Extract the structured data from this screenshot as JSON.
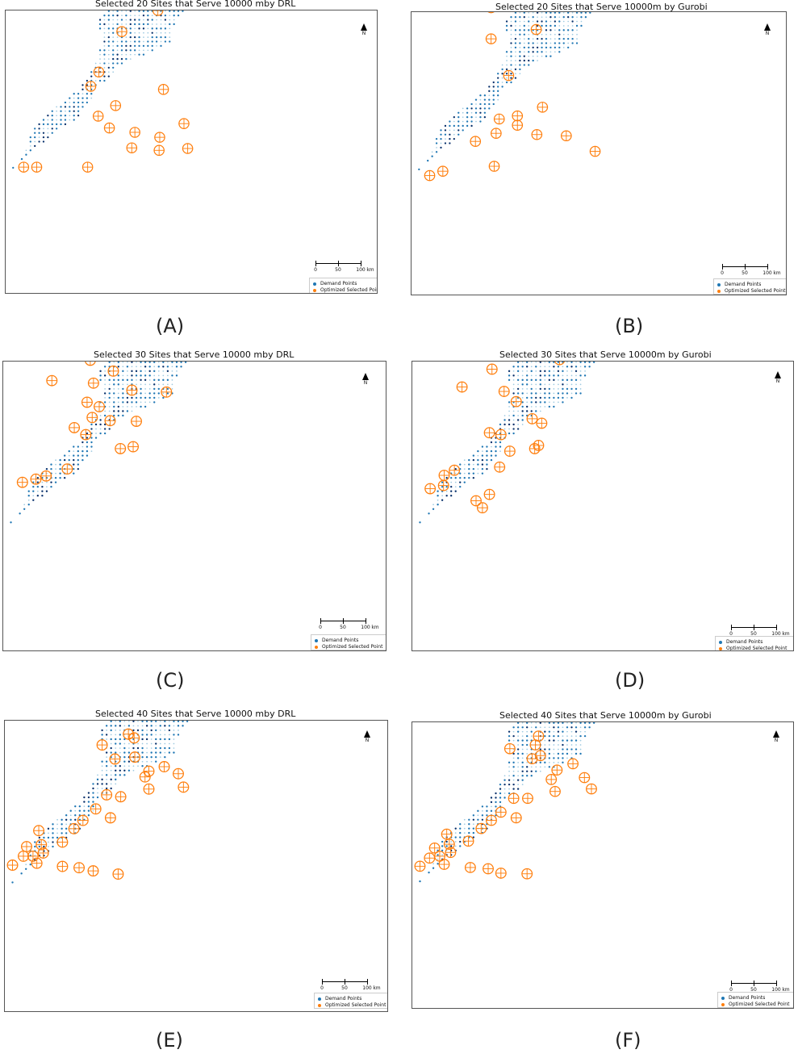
{
  "colors": {
    "demand": "#1f77b4",
    "demand_dark": "#08306b",
    "demand_light": "#9ecae1",
    "selected": "#ff7f0e"
  },
  "common": {
    "north_label": "N",
    "scale_labels": [
      "0",
      "50",
      "100"
    ],
    "scale_unit": "km",
    "legend_demand": "Demand Points",
    "legend_selected": "Optimized Selected Point"
  },
  "panels": [
    {
      "id": "A",
      "label": "(A)",
      "title": "Selected 20 Sites that Serve 10000 mby DRL",
      "sites": [
        [
          -168,
          264
        ],
        [
          -99,
          223
        ],
        [
          -32,
          220
        ],
        [
          -55,
          150
        ],
        [
          -113,
          116
        ],
        [
          -150,
          51
        ],
        [
          -163,
          28
        ],
        [
          -46,
          23
        ],
        [
          -123,
          -3
        ],
        [
          -151,
          -20
        ],
        [
          -133,
          -39
        ],
        [
          -92,
          -46
        ],
        [
          -52,
          -54
        ],
        [
          -13,
          -32
        ],
        [
          -97,
          -71
        ],
        [
          -53,
          -75
        ],
        [
          -7,
          -72
        ],
        [
          -168,
          -102
        ],
        [
          -250,
          -102
        ],
        [
          -271,
          -102
        ]
      ]
    },
    {
      "id": "B",
      "label": "(B)",
      "title": "Selected 20 Sites that Serve 10000m by Gurobi",
      "sites": [
        [
          -150,
          264
        ],
        [
          -42,
          215
        ],
        [
          -162,
          203
        ],
        [
          -20,
          194
        ],
        [
          -173,
          157
        ],
        [
          -101,
          122
        ],
        [
          -173,
          107
        ],
        [
          -145,
          48
        ],
        [
          -91,
          -3
        ],
        [
          -131,
          -17
        ],
        [
          -160,
          -22
        ],
        [
          -131,
          -32
        ],
        [
          -165,
          -45
        ],
        [
          -100,
          -47
        ],
        [
          -198,
          -58
        ],
        [
          -53,
          -49
        ],
        [
          -7,
          -74
        ],
        [
          -168,
          -98
        ],
        [
          -250,
          -106
        ],
        [
          -271,
          -113
        ]
      ]
    },
    {
      "id": "C",
      "label": "(C)",
      "title": "Selected 30 Sites that Serve 10000 mby DRL",
      "sites": [
        [
          -48,
          327
        ],
        [
          -74,
          320
        ],
        [
          -10,
          278
        ],
        [
          -127,
          262
        ],
        [
          -58,
          250
        ],
        [
          -104,
          230
        ],
        [
          -150,
          211
        ],
        [
          -128,
          211
        ],
        [
          -206,
          176
        ],
        [
          -150,
          176
        ],
        [
          -54,
          160
        ],
        [
          -164,
          152
        ],
        [
          -128,
          135
        ],
        [
          -224,
          120
        ],
        [
          -159,
          116
        ],
        [
          -99,
          105
        ],
        [
          -45,
          102
        ],
        [
          -169,
          86
        ],
        [
          -150,
          79
        ],
        [
          -161,
          62
        ],
        [
          -133,
          57
        ],
        [
          -92,
          56
        ],
        [
          -189,
          46
        ],
        [
          -171,
          35
        ],
        [
          -97,
          16
        ],
        [
          -117,
          13
        ],
        [
          -200,
          -19
        ],
        [
          -233,
          -30
        ],
        [
          -249,
          -35
        ],
        [
          -270,
          -40
        ]
      ]
    },
    {
      "id": "D",
      "label": "(D)",
      "title": "Selected 30 Sites that Serve 10000m by Gurobi",
      "sites": [
        [
          -24,
          307
        ],
        [
          -77,
          312
        ],
        [
          -115,
          272
        ],
        [
          -162,
          266
        ],
        [
          -142,
          253
        ],
        [
          -115,
          221
        ],
        [
          -188,
          215
        ],
        [
          -127,
          200
        ],
        [
          -78,
          187
        ],
        [
          -152,
          187
        ],
        [
          -69,
          153
        ],
        [
          -175,
          138
        ],
        [
          -222,
          110
        ],
        [
          -156,
          103
        ],
        [
          -137,
          87
        ],
        [
          -112,
          60
        ],
        [
          -97,
          53
        ],
        [
          -179,
          38
        ],
        [
          -161,
          35
        ],
        [
          -102,
          18
        ],
        [
          -108,
          13
        ],
        [
          -147,
          9
        ],
        [
          -163,
          -16
        ],
        [
          -234,
          -21
        ],
        [
          -250,
          -29
        ],
        [
          -251,
          -45
        ],
        [
          -272,
          -50
        ],
        [
          -190,
          -80
        ],
        [
          -200,
          -69
        ],
        [
          -179,
          -59
        ]
      ]
    },
    {
      "id": "E",
      "label": "(E)",
      "title": "Selected 40 Sites that Serve 10000 mby DRL",
      "sites": [
        [
          -34,
          265
        ],
        [
          -121,
          258
        ],
        [
          -61,
          240
        ],
        [
          -130,
          234
        ],
        [
          -160,
          211
        ],
        [
          -127,
          210
        ],
        [
          -157,
          204
        ],
        [
          -64,
          177
        ],
        [
          -144,
          174
        ],
        [
          -175,
          164
        ],
        [
          -107,
          129
        ],
        [
          -98,
          123
        ],
        [
          -148,
          112
        ],
        [
          -97,
          93
        ],
        [
          -128,
          90
        ],
        [
          -51,
          78
        ],
        [
          -75,
          71
        ],
        [
          -29,
          67
        ],
        [
          -81,
          62
        ],
        [
          -21,
          46
        ],
        [
          -75,
          43
        ],
        [
          -141,
          34
        ],
        [
          -119,
          31
        ],
        [
          -158,
          12
        ],
        [
          -178,
          -6
        ],
        [
          -135,
          -2
        ],
        [
          -192,
          -19
        ],
        [
          -247,
          -22
        ],
        [
          -210,
          -40
        ],
        [
          -243,
          -44
        ],
        [
          -266,
          -47
        ],
        [
          -240,
          -57
        ],
        [
          -256,
          -62
        ],
        [
          -271,
          -62
        ],
        [
          -250,
          -73
        ],
        [
          -288,
          -76
        ],
        [
          -210,
          -78
        ],
        [
          -184,
          -80
        ],
        [
          -162,
          -85
        ],
        [
          -123,
          -90
        ]
      ]
    },
    {
      "id": "F",
      "label": "(F)",
      "title": "Selected 40 Sites that Serve 10000m by Gurobi",
      "sites": [
        [
          -28,
          264
        ],
        [
          -124,
          256
        ],
        [
          -70,
          242
        ],
        [
          -132,
          238
        ],
        [
          -158,
          211
        ],
        [
          -128,
          209
        ],
        [
          -160,
          193
        ],
        [
          -60,
          180
        ],
        [
          -148,
          180
        ],
        [
          -170,
          161
        ],
        [
          -102,
          128
        ],
        [
          -107,
          114
        ],
        [
          -147,
          108
        ],
        [
          -99,
          97
        ],
        [
          -112,
          92
        ],
        [
          -48,
          84
        ],
        [
          -73,
          74
        ],
        [
          -30,
          62
        ],
        [
          -82,
          59
        ],
        [
          -19,
          44
        ],
        [
          -76,
          40
        ],
        [
          -141,
          29
        ],
        [
          -119,
          29
        ],
        [
          -161,
          7
        ],
        [
          -176,
          -6
        ],
        [
          -137,
          -2
        ],
        [
          -192,
          -19
        ],
        [
          -246,
          -28
        ],
        [
          -212,
          -39
        ],
        [
          -242,
          -44
        ],
        [
          -265,
          -50
        ],
        [
          -240,
          -57
        ],
        [
          -257,
          -63
        ],
        [
          -273,
          -66
        ],
        [
          -250,
          -76
        ],
        [
          -288,
          -79
        ],
        [
          -209,
          -81
        ],
        [
          -181,
          -83
        ],
        [
          -161,
          -90
        ],
        [
          -120,
          -91
        ]
      ]
    }
  ]
}
